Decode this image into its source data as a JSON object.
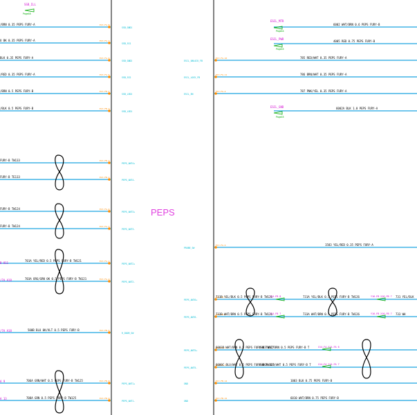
{
  "module_label": "PEPS",
  "colors": {
    "wire": "#1aa3e0",
    "pin": "#ff8c00",
    "signal": "#00bcd4",
    "ref": "#d000d0",
    "connector": "#00aa00"
  },
  "top_refs": {
    "ssb": "SSB_ILL",
    "ssb_page": "Page48"
  },
  "left_wires": [
    {
      "label": "/BRN 0.35 PEPS FURY-A",
      "pin": "E13-FA-8",
      "signal": "SSB_GND1"
    },
    {
      "label": "U BK 0.35 PEPS FURY-A",
      "pin": "E13-FA-7",
      "signal": "SSB_SS1"
    },
    {
      "label": "BLK 0.35 PEPS FURY-A",
      "pin": "E13-FA-6",
      "signal": "SSB_GND2"
    },
    {
      "label": "/RED 0.35 PEPS FURY-A",
      "pin": "E13-FA-5",
      "signal": "SSB_SS2"
    },
    {
      "label": "/BRN 0.5 PEPS FURY-B",
      "pin": "E13-FB-4",
      "signal": "SSB_LED2"
    },
    {
      "label": "/BLK 0.5 PEPS FURY-B",
      "pin": "E13-FB-3",
      "signal": "SSB_LED1"
    },
    {
      "label": "FURY-B TW133",
      "pin": "E13-FB-2",
      "signal": "PEPS_ANT4+"
    },
    {
      "label": "FURY-B TE133",
      "pin": "E13-FB-1",
      "signal": "PEPS_ANT4-"
    },
    {
      "label": "FURY-B TW124",
      "pin": "E13-FA-4",
      "signal": "PEPS_ANT3+"
    },
    {
      "label": "FURY-B TW124",
      "pin": "E13-FA-3",
      "signal": "PEPS_ANT3-"
    },
    {
      "label": "701A YEL/RED 0.5 PEPS FURY-B TW121",
      "pin": "E13-FA-1",
      "signal": "PEPS_ANT2+"
    },
    {
      "label": "703A ORG/GRN 0K 0.5 PEPS FURY-B TW121",
      "pin": "E13-FA-2",
      "signal": "PEPS_ANT2-"
    },
    {
      "label": "500B BLU 0K/VLT 0.5 PEPS FURY-B",
      "pin": "E13-FB-6",
      "signal": "R_DOOR_SW"
    },
    {
      "label": "706A GRN/WHT 0.5 PEPS FURY-B TW125",
      "pin": "E13-FB-8",
      "signal": "PEPS_ANT1+"
    },
    {
      "label": "708A GRN 0.5 PEPS FURY-B TW125",
      "pin": "E13-FB-9",
      "signal": "PEPS_ANT1-"
    }
  ],
  "left_refs": [
    "B 811",
    "/7A A18",
    "/7A A18",
    "A 9",
    "A 13"
  ],
  "right_refs": [
    {
      "name": "ESCL_MTR",
      "page": "Page44"
    },
    {
      "name": "ESCL_PWR",
      "page": "Page45"
    },
    {
      "name": "ESCL_GND",
      "page": "Page45"
    }
  ],
  "right_wires": [
    {
      "label": "6002 WHT/BRN 0.6 PEPS FURY-B",
      "pin": "",
      "signal": ""
    },
    {
      "label": "4005 RED 0.75 PEPS FURY-B",
      "pin": "",
      "signal": ""
    },
    {
      "label": "785 RED/WHT 0.35 PEPS FURY-A",
      "pin": "E13-FA-10",
      "signal": "ESCL_UNLOCK_FB"
    },
    {
      "label": "786 BRN/WHT 0.35 PEPS FURY-A",
      "pin": "E13-FA-11",
      "signal": "ESCL_LOCK_FB"
    },
    {
      "label": "787 PNK/YEL 0.35 PEPS FURY-A",
      "pin": "E13-FA-4",
      "signal": "ESCL_EN"
    },
    {
      "label": "6002A BLK 1.0 PEPS FURY-A",
      "pin": "",
      "signal": ""
    },
    {
      "label": "1583 YEL/RED 0.35 PEPS FURY-A",
      "pin": "E13-FA-6",
      "signal": "PRUBE_SW"
    },
    {
      "label": "731B YEL/BLK 0.5 PEPS FURY-B TW126",
      "pin": "E13-FB-3",
      "signal": "PEPS_ANT6+",
      "mid": "731A YEL/BLK 0.5 PEPS FURY-B TW126",
      "end": "731 YEL/BLK",
      "conn1": "Y14-FB 8",
      "conn2": "Y16-FB X16-FB 7"
    },
    {
      "label": "733B WHT/BRN 0.5 PEPS FURY-B TW126",
      "pin": "E13-FB-2",
      "signal": "PEPS_ANT6-",
      "mid": "733A WHT/BRN 0.5 PEPS FURY-B TW126",
      "end": "733 WH",
      "conn1": "Y14-FB 7",
      "conn2": "Y16-FB X16-FB 7"
    },
    {
      "label": "6003B WHT/BRN 0.5 PEPS FURY-B TW127",
      "pin": "E13-FA-1",
      "signal": "PEPS_ANT5+",
      "mid": "6003 WHT/BRN 0.5 PEPS FURY-B T",
      "conn1": "X14-FA Y14-FA 6"
    },
    {
      "label": "6000C BLU/WHT 0.5 PEPS FURY-B TW127",
      "pin": "E13-FA-2",
      "signal": "PEPS_ANT5-",
      "mid": "6000A BLU/WHT 0.5 PEPS FURY-B T",
      "conn1": "X14-FA Y14-FA 7"
    },
    {
      "label": "1003 BLK 0.75 PEPS FURY-B",
      "pin": "E13-FB-14",
      "signal": "GND"
    },
    {
      "label": "6010 WHT/BRN 0.75 PEPS FURY-B",
      "pin": "E13-FB-15",
      "signal": "GND"
    }
  ]
}
